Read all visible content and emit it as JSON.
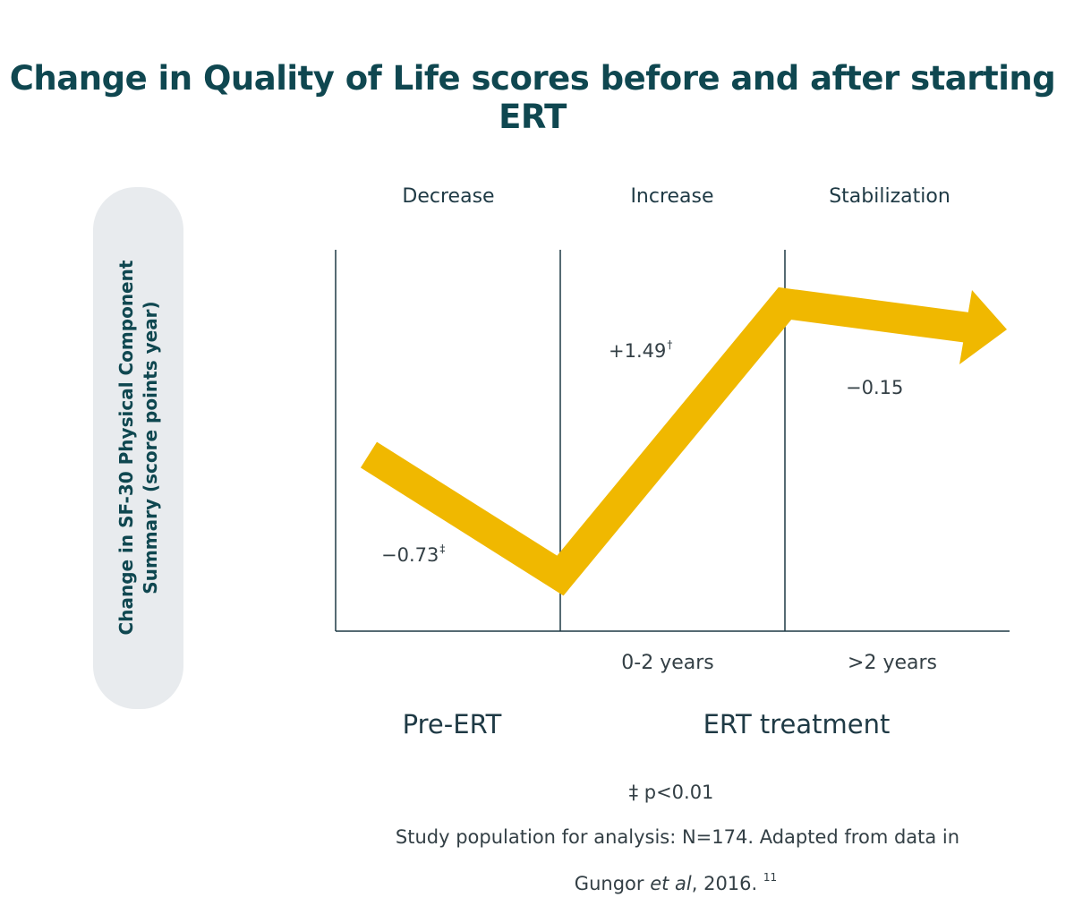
{
  "chart_data": {
    "type": "line",
    "title": "Change in Quality of Life scores before and after starting ERT",
    "ylabel_lines": [
      "Change in SF-30 Physical Component",
      "Summary (score points year)"
    ],
    "phases": [
      "Decrease",
      "Increase",
      "Stabilization"
    ],
    "categories": [
      "",
      "0-2 years",
      ">2 years"
    ],
    "groups": [
      "Pre-ERT",
      "ERT treatment"
    ],
    "series": [
      {
        "values": [
          -0.73,
          1.49,
          -0.15
        ],
        "labels": [
          "−0.73",
          "+1.49",
          "−0.15"
        ],
        "marks": [
          "‡",
          "†",
          ""
        ]
      }
    ],
    "grid": false,
    "legend": "none"
  },
  "colors": {
    "line": "#f0b800",
    "title": "#0f4750",
    "axis": "#1f3a45",
    "pill": "#e8ebee"
  },
  "footnotes": {
    "significance": "‡ p<0.01",
    "citation_line1": "Study population for analysis: N=174. Adapted from data in",
    "citation_author": "Gungor ",
    "citation_etal": "et al",
    "citation_year": ", 2016.",
    "citation_ref": "11"
  }
}
